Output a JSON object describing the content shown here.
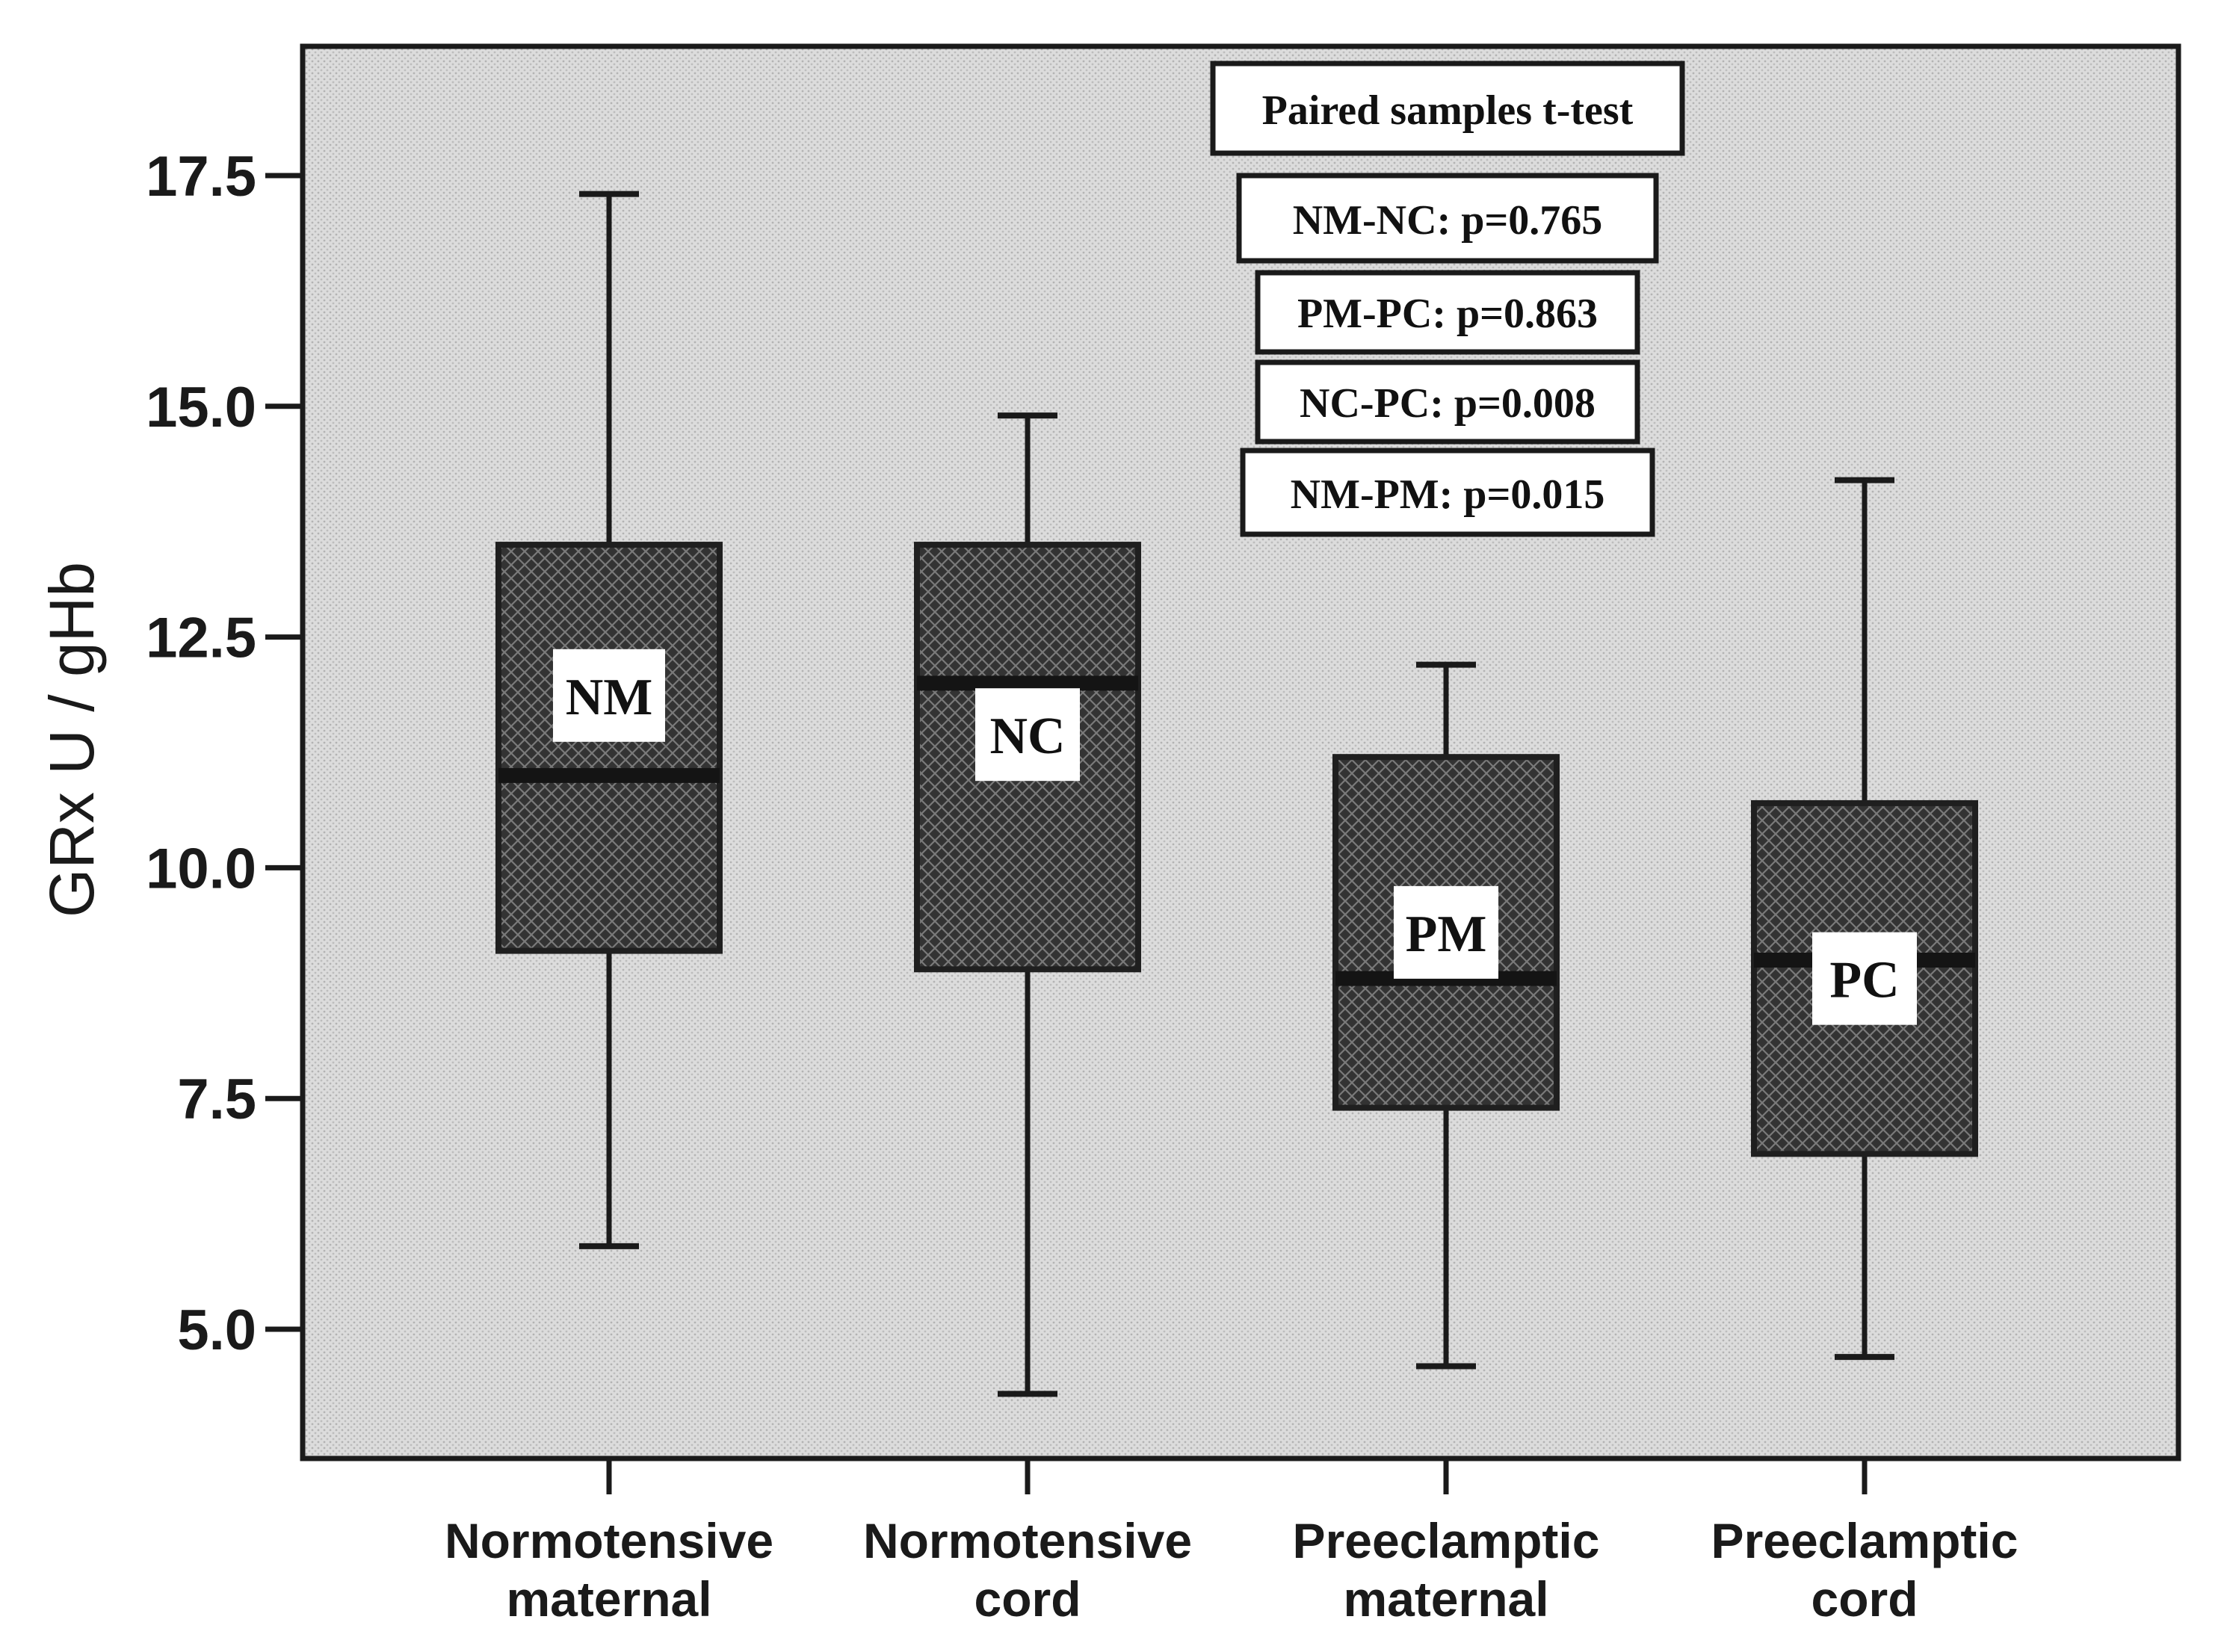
{
  "chart_data": {
    "type": "box",
    "ylabel": "GRx  U / gHb",
    "ylim": [
      3.6,
      18.9
    ],
    "yticks": [
      "5.0",
      "7.5",
      "10.0",
      "12.5",
      "15.0",
      "17.5"
    ],
    "categories": [
      "Normotensive maternal",
      "Normotensive cord",
      "Preeclamptic maternal",
      "Preeclamptic cord"
    ],
    "category_lines": [
      [
        "Normotensive",
        "maternal"
      ],
      [
        "Normotensive",
        "cord"
      ],
      [
        "Preeclamptic",
        "maternal"
      ],
      [
        "Preeclamptic",
        "cord"
      ]
    ],
    "boxes": [
      {
        "label": "NM",
        "min": 5.9,
        "q1": 9.1,
        "median": 11.0,
        "q3": 13.5,
        "max": 17.3
      },
      {
        "label": "NC",
        "min": 4.3,
        "q1": 8.9,
        "median": 12.0,
        "q3": 13.5,
        "max": 14.9
      },
      {
        "label": "PM",
        "min": 4.6,
        "q1": 7.4,
        "median": 8.8,
        "q3": 11.2,
        "max": 12.2
      },
      {
        "label": "PC",
        "min": 4.7,
        "q1": 6.9,
        "median": 9.0,
        "q3": 10.7,
        "max": 14.2
      }
    ],
    "annotation": {
      "title": "Paired samples t-test",
      "lines": [
        "NM-NC: p=0.765",
        "PM-PC: p=0.863",
        "NC-PC: p=0.008",
        "NM-PM: p=0.015"
      ]
    },
    "grid": false,
    "colors": {
      "plot_bg": "#d9d9d9",
      "box_fill": "#3a3a3a",
      "axis": "#1a1a1a"
    }
  }
}
